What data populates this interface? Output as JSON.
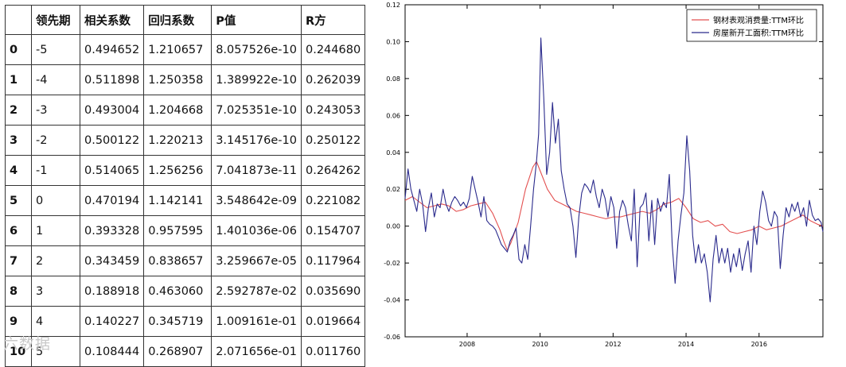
{
  "table": {
    "headers": [
      "",
      "领先期",
      "相关系数",
      "回归系数",
      "P值",
      "R方"
    ],
    "rows": [
      {
        "index": "0",
        "lead": "-5",
        "corr": "0.494652",
        "reg": "1.210657",
        "p": "8.057526e-10",
        "r2": "0.244680"
      },
      {
        "index": "1",
        "lead": "-4",
        "corr": "0.511898",
        "reg": "1.250358",
        "p": "1.389922e-10",
        "r2": "0.262039"
      },
      {
        "index": "2",
        "lead": "-3",
        "corr": "0.493004",
        "reg": "1.204668",
        "p": "7.025351e-10",
        "r2": "0.243053"
      },
      {
        "index": "3",
        "lead": "-2",
        "corr": "0.500122",
        "reg": "1.220213",
        "p": "3.145176e-10",
        "r2": "0.250122"
      },
      {
        "index": "4",
        "lead": "-1",
        "corr": "0.514065",
        "reg": "1.256256",
        "p": "7.041873e-11",
        "r2": "0.264262"
      },
      {
        "index": "5",
        "lead": "0",
        "corr": "0.470194",
        "reg": "1.142141",
        "p": "3.548642e-09",
        "r2": "0.221082"
      },
      {
        "index": "6",
        "lead": "1",
        "corr": "0.393328",
        "reg": "0.957595",
        "p": "1.401036e-06",
        "r2": "0.154707"
      },
      {
        "index": "7",
        "lead": "2",
        "corr": "0.343459",
        "reg": "0.838657",
        "p": "3.259667e-05",
        "r2": "0.117964"
      },
      {
        "index": "8",
        "lead": "3",
        "corr": "0.188918",
        "reg": "0.463060",
        "p": "2.592787e-02",
        "r2": "0.035690"
      },
      {
        "index": "9",
        "lead": "4",
        "corr": "0.140227",
        "reg": "0.345719",
        "p": "1.009161e-01",
        "r2": "0.019664"
      },
      {
        "index": "10",
        "lead": "5",
        "corr": "0.108444",
        "reg": "0.268907",
        "p": "2.071656e-01",
        "r2": "0.011760"
      }
    ]
  },
  "watermark": "六数据",
  "chart_data": {
    "type": "line",
    "title": "",
    "xlabel": "",
    "ylabel": "",
    "xlim": [
      2006.3,
      2017.75
    ],
    "ylim": [
      -0.06,
      0.12
    ],
    "x_ticks": [
      "2008",
      "2010",
      "2012",
      "2014",
      "2016"
    ],
    "y_ticks": [
      "0.12",
      "0.10",
      "0.08",
      "0.06",
      "0.04",
      "0.02",
      "0.00",
      "-0.02",
      "-0.04",
      "-0.06"
    ],
    "legend_position": "top-right",
    "grid": false,
    "series": [
      {
        "name": "钢材表观消费量:TTM环比",
        "color": "#e35050",
        "points": [
          [
            2006.3,
            0.014
          ],
          [
            2006.5,
            0.016
          ],
          [
            2006.7,
            0.013
          ],
          [
            2006.9,
            0.01
          ],
          [
            2007.1,
            0.011
          ],
          [
            2007.3,
            0.012
          ],
          [
            2007.5,
            0.011
          ],
          [
            2007.7,
            0.008
          ],
          [
            2007.9,
            0.009
          ],
          [
            2008.1,
            0.011
          ],
          [
            2008.3,
            0.012
          ],
          [
            2008.5,
            0.013
          ],
          [
            2008.7,
            0.007
          ],
          [
            2008.9,
            -0.002
          ],
          [
            2009.0,
            -0.008
          ],
          [
            2009.1,
            -0.013
          ],
          [
            2009.2,
            -0.009
          ],
          [
            2009.4,
            0.002
          ],
          [
            2009.6,
            0.02
          ],
          [
            2009.8,
            0.032
          ],
          [
            2009.9,
            0.035
          ],
          [
            2010.0,
            0.03
          ],
          [
            2010.2,
            0.02
          ],
          [
            2010.4,
            0.014
          ],
          [
            2010.6,
            0.012
          ],
          [
            2010.8,
            0.01
          ],
          [
            2011.0,
            0.008
          ],
          [
            2011.2,
            0.007
          ],
          [
            2011.4,
            0.006
          ],
          [
            2011.6,
            0.005
          ],
          [
            2011.8,
            0.004
          ],
          [
            2012.0,
            0.005
          ],
          [
            2012.2,
            0.005
          ],
          [
            2012.4,
            0.006
          ],
          [
            2012.6,
            0.007
          ],
          [
            2012.8,
            0.008
          ],
          [
            2013.0,
            0.007
          ],
          [
            2013.2,
            0.009
          ],
          [
            2013.4,
            0.012
          ],
          [
            2013.6,
            0.013
          ],
          [
            2013.8,
            0.015
          ],
          [
            2014.0,
            0.01
          ],
          [
            2014.2,
            0.004
          ],
          [
            2014.4,
            0.002
          ],
          [
            2014.6,
            0.003
          ],
          [
            2014.8,
            0.0
          ],
          [
            2015.0,
            0.001
          ],
          [
            2015.2,
            -0.003
          ],
          [
            2015.4,
            -0.004
          ],
          [
            2015.6,
            -0.003
          ],
          [
            2015.8,
            -0.002
          ],
          [
            2016.0,
            0.0
          ],
          [
            2016.2,
            -0.002
          ],
          [
            2016.4,
            -0.001
          ],
          [
            2016.6,
            0.0
          ],
          [
            2016.8,
            0.002
          ],
          [
            2017.0,
            0.004
          ],
          [
            2017.2,
            0.006
          ],
          [
            2017.4,
            0.003
          ],
          [
            2017.6,
            0.001
          ],
          [
            2017.75,
            0.0
          ]
        ]
      },
      {
        "name": "房屋新开工面积:TTM环比",
        "color": "#2a2a8c",
        "points": [
          [
            2006.3,
            0.015
          ],
          [
            2006.38,
            0.031
          ],
          [
            2006.46,
            0.02
          ],
          [
            2006.54,
            0.014
          ],
          [
            2006.62,
            0.008
          ],
          [
            2006.7,
            0.02
          ],
          [
            2006.78,
            0.012
          ],
          [
            2006.86,
            -0.003
          ],
          [
            2006.94,
            0.01
          ],
          [
            2007.02,
            0.018
          ],
          [
            2007.1,
            0.005
          ],
          [
            2007.18,
            0.012
          ],
          [
            2007.26,
            0.01
          ],
          [
            2007.34,
            0.02
          ],
          [
            2007.42,
            0.012
          ],
          [
            2007.5,
            0.008
          ],
          [
            2007.58,
            0.013
          ],
          [
            2007.66,
            0.016
          ],
          [
            2007.74,
            0.014
          ],
          [
            2007.82,
            0.011
          ],
          [
            2007.9,
            0.013
          ],
          [
            2007.98,
            0.01
          ],
          [
            2008.06,
            0.015
          ],
          [
            2008.14,
            0.027
          ],
          [
            2008.22,
            0.02
          ],
          [
            2008.3,
            0.013
          ],
          [
            2008.38,
            0.005
          ],
          [
            2008.46,
            0.016
          ],
          [
            2008.54,
            0.003
          ],
          [
            2008.62,
            0.001
          ],
          [
            2008.7,
            0.0
          ],
          [
            2008.78,
            -0.002
          ],
          [
            2008.86,
            -0.006
          ],
          [
            2008.94,
            -0.01
          ],
          [
            2009.02,
            -0.012
          ],
          [
            2009.1,
            -0.014
          ],
          [
            2009.18,
            -0.008
          ],
          [
            2009.26,
            -0.005
          ],
          [
            2009.34,
            -0.001
          ],
          [
            2009.42,
            -0.018
          ],
          [
            2009.5,
            -0.02
          ],
          [
            2009.58,
            -0.01
          ],
          [
            2009.66,
            -0.018
          ],
          [
            2009.74,
            0.0
          ],
          [
            2009.82,
            0.02
          ],
          [
            2009.9,
            0.035
          ],
          [
            2009.96,
            0.05
          ],
          [
            2010.02,
            0.102
          ],
          [
            2010.1,
            0.07
          ],
          [
            2010.18,
            0.028
          ],
          [
            2010.26,
            0.04
          ],
          [
            2010.34,
            0.067
          ],
          [
            2010.42,
            0.045
          ],
          [
            2010.5,
            0.058
          ],
          [
            2010.58,
            0.03
          ],
          [
            2010.66,
            0.02
          ],
          [
            2010.74,
            0.012
          ],
          [
            2010.82,
            0.01
          ],
          [
            2010.9,
            0.0
          ],
          [
            2010.98,
            -0.017
          ],
          [
            2011.06,
            0.005
          ],
          [
            2011.14,
            0.018
          ],
          [
            2011.22,
            0.023
          ],
          [
            2011.3,
            0.021
          ],
          [
            2011.38,
            0.018
          ],
          [
            2011.46,
            0.025
          ],
          [
            2011.54,
            0.016
          ],
          [
            2011.62,
            0.01
          ],
          [
            2011.7,
            0.02
          ],
          [
            2011.78,
            0.015
          ],
          [
            2011.86,
            0.005
          ],
          [
            2011.94,
            0.016
          ],
          [
            2012.02,
            0.01
          ],
          [
            2012.1,
            -0.012
          ],
          [
            2012.18,
            0.008
          ],
          [
            2012.26,
            0.014
          ],
          [
            2012.34,
            0.01
          ],
          [
            2012.42,
            0.0
          ],
          [
            2012.5,
            -0.008
          ],
          [
            2012.58,
            0.02
          ],
          [
            2012.66,
            -0.022
          ],
          [
            2012.74,
            0.01
          ],
          [
            2012.82,
            0.012
          ],
          [
            2012.9,
            0.018
          ],
          [
            2012.98,
            -0.008
          ],
          [
            2013.06,
            0.014
          ],
          [
            2013.14,
            -0.01
          ],
          [
            2013.22,
            0.015
          ],
          [
            2013.3,
            0.008
          ],
          [
            2013.38,
            0.013
          ],
          [
            2013.46,
            0.01
          ],
          [
            2013.54,
            0.028
          ],
          [
            2013.62,
            -0.01
          ],
          [
            2013.7,
            -0.031
          ],
          [
            2013.78,
            -0.008
          ],
          [
            2013.86,
            0.006
          ],
          [
            2013.94,
            0.018
          ],
          [
            2014.02,
            0.049
          ],
          [
            2014.1,
            0.03
          ],
          [
            2014.18,
            -0.005
          ],
          [
            2014.26,
            -0.02
          ],
          [
            2014.34,
            -0.01
          ],
          [
            2014.42,
            -0.02
          ],
          [
            2014.5,
            -0.015
          ],
          [
            2014.58,
            -0.025
          ],
          [
            2014.66,
            -0.041
          ],
          [
            2014.74,
            -0.018
          ],
          [
            2014.82,
            -0.005
          ],
          [
            2014.9,
            -0.02
          ],
          [
            2014.98,
            -0.012
          ],
          [
            2015.06,
            -0.02
          ],
          [
            2015.14,
            -0.012
          ],
          [
            2015.22,
            -0.025
          ],
          [
            2015.3,
            -0.015
          ],
          [
            2015.38,
            -0.022
          ],
          [
            2015.46,
            -0.012
          ],
          [
            2015.54,
            -0.024
          ],
          [
            2015.62,
            -0.015
          ],
          [
            2015.7,
            -0.008
          ],
          [
            2015.78,
            -0.025
          ],
          [
            2015.86,
            0.0
          ],
          [
            2015.94,
            -0.01
          ],
          [
            2016.02,
            0.008
          ],
          [
            2016.1,
            0.019
          ],
          [
            2016.18,
            0.013
          ],
          [
            2016.26,
            0.003
          ],
          [
            2016.34,
            0.0
          ],
          [
            2016.42,
            0.008
          ],
          [
            2016.5,
            0.005
          ],
          [
            2016.58,
            -0.023
          ],
          [
            2016.66,
            -0.005
          ],
          [
            2016.74,
            0.01
          ],
          [
            2016.82,
            0.005
          ],
          [
            2016.9,
            0.012
          ],
          [
            2016.98,
            0.008
          ],
          [
            2017.06,
            0.013
          ],
          [
            2017.14,
            0.005
          ],
          [
            2017.22,
            0.01
          ],
          [
            2017.3,
            0.0
          ],
          [
            2017.38,
            0.014
          ],
          [
            2017.46,
            0.006
          ],
          [
            2017.54,
            0.003
          ],
          [
            2017.62,
            0.004
          ],
          [
            2017.7,
            0.002
          ],
          [
            2017.75,
            -0.003
          ]
        ]
      }
    ]
  }
}
